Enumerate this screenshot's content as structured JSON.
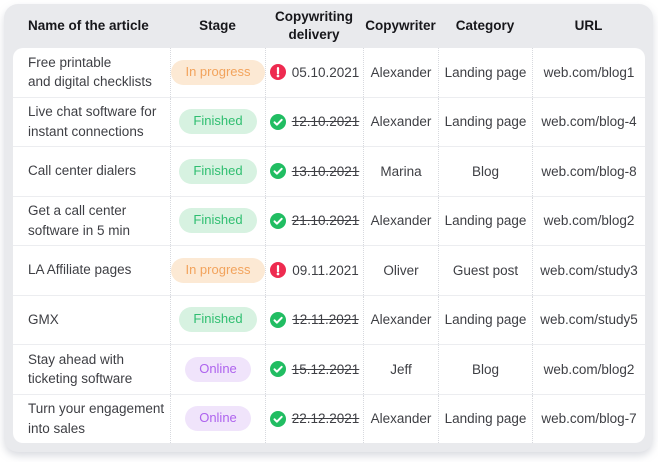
{
  "table": {
    "columns": [
      {
        "label": "Name of the article"
      },
      {
        "label": "Stage"
      },
      {
        "label": "Copywriting delivery"
      },
      {
        "label": "Copywriter"
      },
      {
        "label": "Category"
      },
      {
        "label": "URL"
      }
    ],
    "rows": [
      {
        "name": "Free printable\nand digital checklists",
        "stage": {
          "label": "In progress",
          "type": "in-progress"
        },
        "delivery": {
          "icon": "alert-icon",
          "date": "05.10.2021",
          "struck": false
        },
        "copywriter": "Alexander",
        "category": "Landing page",
        "url": "web.com/blog1"
      },
      {
        "name": "Live chat software for\ninstant connections",
        "stage": {
          "label": "Finished",
          "type": "finished"
        },
        "delivery": {
          "icon": "check-icon",
          "date": "12.10.2021",
          "struck": true
        },
        "copywriter": "Alexander",
        "category": "Landing page",
        "url": "web.com/blog-4"
      },
      {
        "name": "Call center dialers",
        "stage": {
          "label": "Finished",
          "type": "finished"
        },
        "delivery": {
          "icon": "check-icon",
          "date": "13.10.2021",
          "struck": true
        },
        "copywriter": "Marina",
        "category": "Blog",
        "url": "web.com/blog-8"
      },
      {
        "name": "Get a call center\nsoftware in 5 min",
        "stage": {
          "label": "Finished",
          "type": "finished"
        },
        "delivery": {
          "icon": "check-icon",
          "date": "21.10.2021",
          "struck": true
        },
        "copywriter": "Alexander",
        "category": "Landing page",
        "url": "web.com/blog2"
      },
      {
        "name": "LA Affiliate pages",
        "stage": {
          "label": "In progress",
          "type": "in-progress"
        },
        "delivery": {
          "icon": "alert-icon",
          "date": "09.11.2021",
          "struck": false
        },
        "copywriter": "Oliver",
        "category": "Guest post",
        "url": "web.com/study3"
      },
      {
        "name": "GMX",
        "stage": {
          "label": "Finished",
          "type": "finished"
        },
        "delivery": {
          "icon": "check-icon",
          "date": "12.11.2021",
          "struck": true
        },
        "copywriter": "Alexander",
        "category": "Landing page",
        "url": "web.com/study5"
      },
      {
        "name": "Stay ahead with\nticketing software",
        "stage": {
          "label": "Online",
          "type": "online"
        },
        "delivery": {
          "icon": "check-icon",
          "date": "15.12.2021",
          "struck": true
        },
        "copywriter": "Jeff",
        "category": "Blog",
        "url": "web.com/blog2"
      },
      {
        "name": "Turn your engagement\ninto sales",
        "stage": {
          "label": "Online",
          "type": "online"
        },
        "delivery": {
          "icon": "check-icon",
          "date": "22.12.2021",
          "struck": true
        },
        "copywriter": "Alexander",
        "category": "Landing page",
        "url": "web.com/blog-7"
      }
    ]
  },
  "colors": {
    "card_bg": "#E9EAED",
    "panel_bg": "#FFFFFF",
    "header_text": "#17171B",
    "body_text": "#3E3F44",
    "row_divider": "#ECEDF0",
    "column_divider": "#D7D9DE",
    "stage_in_progress_bg": "#FCE9D4",
    "stage_in_progress_text": "#F2A35C",
    "stage_finished_bg": "#D7F2E1",
    "stage_finished_text": "#2FBE70",
    "stage_online_bg": "#F0E4FB",
    "stage_online_text": "#AE63EE",
    "icon_check": "#21BD62",
    "icon_alert": "#EE2B50"
  }
}
